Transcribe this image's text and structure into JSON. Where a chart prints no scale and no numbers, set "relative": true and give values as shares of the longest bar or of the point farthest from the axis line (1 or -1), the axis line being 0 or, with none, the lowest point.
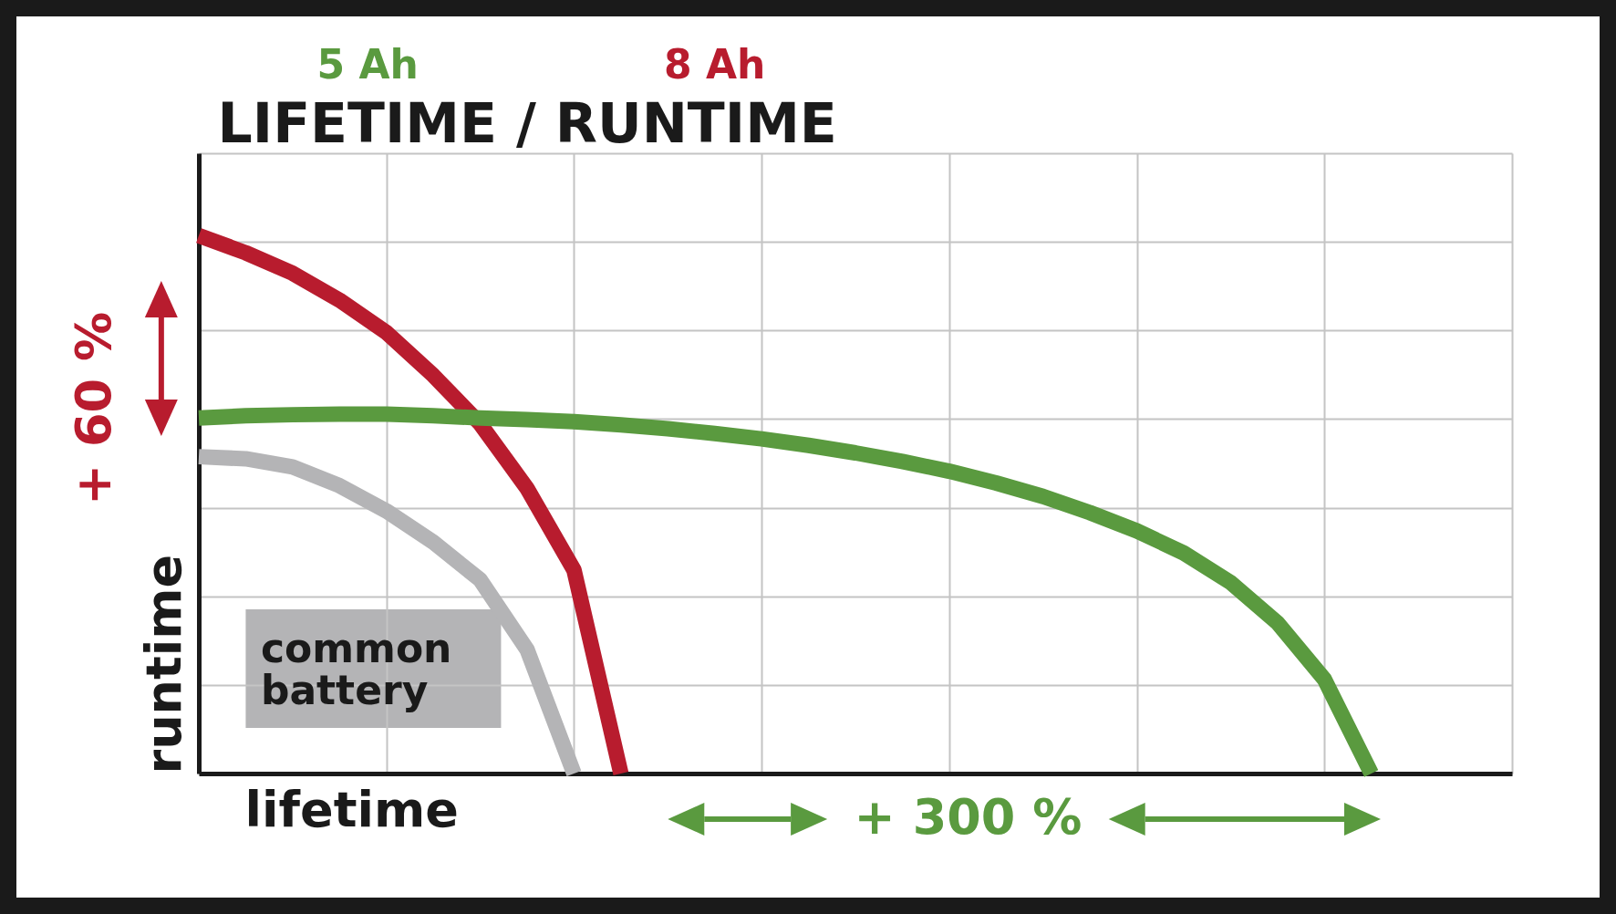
{
  "chart_data": {
    "type": "line",
    "title": "LIFETIME / RUNTIME",
    "xlabel": "lifetime",
    "ylabel": "runtime",
    "relative": true,
    "tick_labels": false,
    "grid": true,
    "legend": false,
    "marker": "none",
    "line_style": "solid",
    "categories": [
      null,
      null,
      null,
      null,
      null,
      null,
      null,
      null,
      null,
      null,
      null,
      null,
      null,
      null,
      null,
      null,
      null,
      null,
      null,
      null,
      null,
      null,
      null,
      null,
      null,
      null,
      null,
      null,
      null
    ],
    "annotations": [
      "+ 60 %",
      "+ 300 %"
    ],
    "series": [
      {
        "name": "common battery",
        "color": "#b4b4b6",
        "values": [
          0.589,
          0.585,
          0.57,
          0.535,
          0.488,
          0.43,
          0.36,
          0.23,
          0,
          null,
          null,
          null,
          null,
          null,
          null,
          null,
          null,
          null,
          null,
          null,
          null,
          null,
          null,
          null,
          null,
          null,
          null,
          null,
          null
        ]
      },
      {
        "name": "8 Ah",
        "color": "#b81c2e",
        "values": [
          1.0,
          0.968,
          0.93,
          0.88,
          0.82,
          0.74,
          0.65,
          0.53,
          0.378,
          0,
          null,
          null,
          null,
          null,
          null,
          null,
          null,
          null,
          null,
          null,
          null,
          null,
          null,
          null,
          null,
          null,
          null,
          null,
          null
        ]
      },
      {
        "name": "5 Ah",
        "color": "#5a9a3f",
        "values": [
          0.661,
          0.665,
          0.667,
          0.668,
          0.668,
          0.665,
          0.661,
          0.658,
          0.654,
          0.648,
          0.641,
          0.632,
          0.622,
          0.61,
          0.596,
          0.58,
          0.562,
          0.54,
          0.515,
          0.485,
          0.451,
          0.41,
          0.355,
          0.28,
          0.175,
          0,
          null,
          null,
          null
        ]
      }
    ]
  }
}
